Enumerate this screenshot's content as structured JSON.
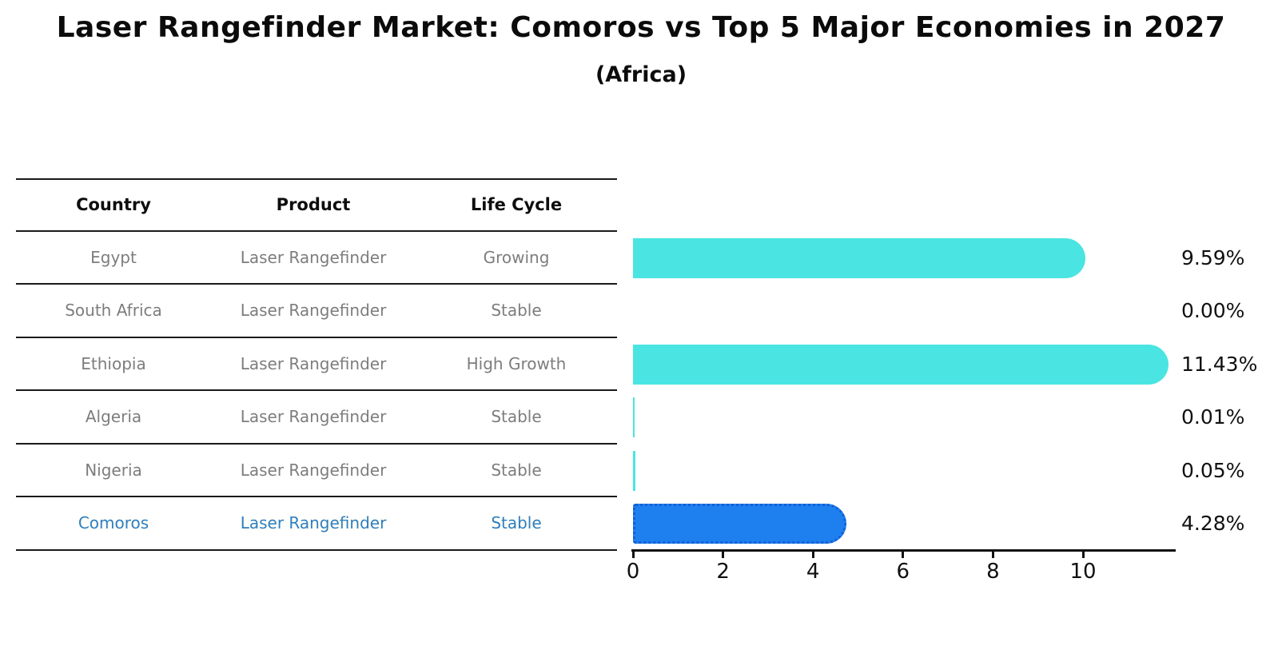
{
  "title": "Laser Rangefinder Market: Comoros vs Top 5 Major Economies in 2027",
  "subtitle": "(Africa)",
  "table": {
    "headers": [
      "Country",
      "Product",
      "Life Cycle"
    ],
    "rows": [
      {
        "country": "Egypt",
        "product": "Laser Rangefinder",
        "life_cycle": "Growing"
      },
      {
        "country": "South Africa",
        "product": "Laser Rangefinder",
        "life_cycle": "Stable"
      },
      {
        "country": "Ethiopia",
        "product": "Laser Rangefinder",
        "life_cycle": "High Growth"
      },
      {
        "country": "Algeria",
        "product": "Laser Rangefinder",
        "life_cycle": "Stable"
      },
      {
        "country": "Nigeria",
        "product": "Laser Rangefinder",
        "life_cycle": "Stable"
      },
      {
        "country": "Comoros",
        "product": "Laser Rangefinder",
        "life_cycle": "Stable"
      }
    ],
    "highlight_row": "Comoros"
  },
  "chart_data": {
    "type": "bar",
    "orientation": "horizontal",
    "title": "Laser Rangefinder Market: Comoros vs Top 5 Major Economies in 2027",
    "subtitle": "(Africa)",
    "categories": [
      "Egypt",
      "South Africa",
      "Ethiopia",
      "Algeria",
      "Nigeria",
      "Comoros"
    ],
    "values": [
      9.59,
      0.0,
      11.43,
      0.01,
      0.05,
      4.28
    ],
    "value_labels": [
      "9.59%",
      "0.00%",
      "11.43%",
      "0.01%",
      "0.05%",
      "4.28%"
    ],
    "x_ticks": [
      "0",
      "2",
      "4",
      "6",
      "8",
      "10"
    ],
    "xlim": [
      0,
      12
    ],
    "unit": "%",
    "grid": false,
    "legend": false,
    "bar_color": "#4ae5e2",
    "highlight_color": "#1e80ef",
    "highlight_index": 5
  },
  "colors": {
    "background": "#ffffff",
    "bar_cyan": "#4ae5e2",
    "bar_blue": "#1e80ef",
    "bar_blue_border": "#135fd3",
    "row_text_gray": "#7d7d7d",
    "highlight_text_blue": "#2e7fc2",
    "table_line": "#1a1a1a",
    "label_text": "#111111"
  }
}
